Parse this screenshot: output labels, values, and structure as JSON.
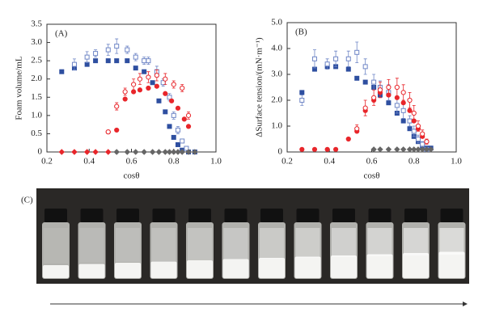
{
  "chart_data": [
    {
      "type": "scatter",
      "panel_label": "(A)",
      "x_label": "cosθ",
      "y_label": "Foam volume/mL",
      "xlim": [
        0.2,
        1.0
      ],
      "xticks": [
        0.2,
        0.4,
        0.6,
        0.8,
        {
          "value": 1.0,
          "label": "1.0"
        }
      ],
      "ylim": [
        0,
        3.5
      ],
      "yticks": [
        0,
        0.5,
        {
          "value": 1.0,
          "label": "1.0"
        },
        1.5,
        {
          "value": 2.0,
          "label": "2.0"
        },
        2.5,
        {
          "value": 3.0,
          "label": "3.0"
        },
        3.5
      ],
      "series": [
        {
          "color": "#2e4fa0",
          "marker": "square",
          "filled": true,
          "x": [
            0.27,
            0.33,
            0.39,
            0.43,
            0.49,
            0.53,
            0.58,
            0.62,
            0.66,
            0.7,
            0.73,
            0.76,
            0.78,
            0.8,
            0.82,
            0.84,
            0.87,
            0.9
          ],
          "values": [
            2.2,
            2.3,
            2.4,
            2.5,
            2.5,
            2.5,
            2.5,
            2.3,
            2.2,
            1.9,
            1.4,
            1.1,
            0.7,
            0.4,
            0.2,
            0.05,
            0,
            0
          ]
        },
        {
          "color": "#6f86c6",
          "marker": "square",
          "filled": false,
          "x": [
            0.33,
            0.39,
            0.43,
            0.49,
            0.53,
            0.58,
            0.62,
            0.66,
            0.68,
            0.72,
            0.75,
            0.78,
            0.8,
            0.82,
            0.84,
            0.86
          ],
          "values": [
            2.4,
            2.6,
            2.7,
            2.8,
            2.9,
            2.8,
            2.6,
            2.5,
            2.5,
            2.2,
            1.9,
            1.5,
            1.0,
            0.6,
            0.3,
            0.1
          ],
          "errors": [
            0.15,
            0.15,
            0.1,
            0.15,
            0.2,
            0.1,
            0.1,
            0.1,
            0.1,
            0.15,
            0.1,
            0.1,
            0.1,
            0.1,
            0.05,
            0.05
          ]
        },
        {
          "color": "#e8262b",
          "marker": "circle",
          "filled": true,
          "x": [
            0.49,
            0.53,
            0.57,
            0.61,
            0.64,
            0.68,
            0.72,
            0.76,
            0.79,
            0.82,
            0.85,
            0.87
          ],
          "values": [
            0.55,
            0.6,
            1.45,
            1.65,
            1.7,
            1.75,
            1.8,
            1.6,
            1.4,
            1.2,
            0.9,
            0.7
          ]
        },
        {
          "color": "#e8262b",
          "marker": "circle",
          "filled": false,
          "x": [
            0.49,
            0.53,
            0.57,
            0.61,
            0.64,
            0.68,
            0.72,
            0.76,
            0.8,
            0.84,
            0.87
          ],
          "values": [
            0.55,
            1.25,
            1.65,
            1.85,
            2.0,
            2.05,
            2.1,
            2.0,
            1.85,
            1.75,
            1.0
          ],
          "errors": [
            0.05,
            0.1,
            0.1,
            0.15,
            0.15,
            0.15,
            0.15,
            0.15,
            0.1,
            0.1,
            0.1
          ]
        },
        {
          "color": "#e8262b",
          "marker": "diamond",
          "filled": true,
          "x": [
            0.27,
            0.33,
            0.39,
            0.43,
            0.49
          ],
          "values": [
            0,
            0,
            0,
            0,
            0
          ]
        },
        {
          "color": "#666666",
          "marker": "diamond",
          "filled": true,
          "x": [
            0.53,
            0.58,
            0.62,
            0.66,
            0.7,
            0.73,
            0.76,
            0.78,
            0.8,
            0.82,
            0.84,
            0.87,
            0.9
          ],
          "values": [
            0,
            0,
            0,
            0,
            0,
            0,
            0,
            0,
            0,
            0,
            0,
            0,
            0
          ]
        }
      ]
    },
    {
      "type": "scatter",
      "panel_label": "(B)",
      "x_label": "cosθ",
      "y_label": "ΔSurface tension/(mN·m⁻¹)",
      "xlim": [
        0.2,
        1.0
      ],
      "xticks": [
        0.2,
        0.4,
        0.6,
        0.8,
        {
          "value": 1.0,
          "label": "1.0"
        }
      ],
      "ylim": [
        0,
        5.0
      ],
      "yticks": [
        0,
        {
          "value": 1.0,
          "label": "1.0"
        },
        {
          "value": 2.0,
          "label": "2.0"
        },
        {
          "value": 3.0,
          "label": "3.0"
        },
        {
          "value": 4.0,
          "label": "4.0"
        },
        {
          "value": 5.0,
          "label": "5.0"
        }
      ],
      "series": [
        {
          "color": "#2e4fa0",
          "marker": "square",
          "filled": true,
          "x": [
            0.27,
            0.33,
            0.39,
            0.43,
            0.49,
            0.53,
            0.57,
            0.61,
            0.64,
            0.68,
            0.72,
            0.75,
            0.78,
            0.8,
            0.82,
            0.84,
            0.86,
            0.88
          ],
          "values": [
            2.3,
            3.2,
            3.3,
            3.3,
            3.2,
            2.85,
            2.7,
            2.5,
            2.2,
            1.9,
            1.5,
            1.2,
            0.9,
            0.6,
            0.4,
            0.2,
            0.15,
            0.15
          ]
        },
        {
          "color": "#6f86c6",
          "marker": "square",
          "filled": false,
          "x": [
            0.27,
            0.33,
            0.39,
            0.43,
            0.49,
            0.53,
            0.57,
            0.61,
            0.64,
            0.68,
            0.72,
            0.75,
            0.78,
            0.8,
            0.82,
            0.84,
            0.86
          ],
          "values": [
            2.0,
            3.6,
            3.4,
            3.6,
            3.6,
            3.85,
            3.3,
            2.7,
            2.5,
            2.3,
            1.8,
            1.6,
            1.2,
            0.8,
            0.5,
            0.3,
            0.1
          ],
          "errors": [
            0.2,
            0.35,
            0.2,
            0.3,
            0.3,
            0.4,
            0.3,
            0.3,
            0.25,
            0.3,
            0.3,
            0.3,
            0.2,
            0.2,
            0.15,
            0.1,
            0.05
          ]
        },
        {
          "color": "#e8262b",
          "marker": "circle",
          "filled": true,
          "x": [
            0.27,
            0.33,
            0.39,
            0.43,
            0.49,
            0.53,
            0.57,
            0.61,
            0.64,
            0.68,
            0.72,
            0.75,
            0.78,
            0.8,
            0.82,
            0.84,
            0.86
          ],
          "values": [
            0.1,
            0.1,
            0.1,
            0.1,
            0.5,
            0.8,
            1.6,
            2.0,
            2.3,
            2.2,
            2.1,
            1.9,
            1.6,
            1.2,
            0.9,
            0.6,
            0.4
          ]
        },
        {
          "color": "#e8262b",
          "marker": "circle",
          "filled": false,
          "x": [
            0.53,
            0.57,
            0.61,
            0.64,
            0.68,
            0.72,
            0.75,
            0.78,
            0.8,
            0.82,
            0.84,
            0.86
          ],
          "values": [
            0.9,
            1.7,
            2.1,
            2.4,
            2.5,
            2.5,
            2.3,
            2.0,
            1.5,
            1.0,
            0.7,
            0.4
          ],
          "errors": [
            0.15,
            0.3,
            0.3,
            0.3,
            0.3,
            0.35,
            0.3,
            0.3,
            0.3,
            0.2,
            0.15,
            0.1
          ]
        },
        {
          "color": "#666666",
          "marker": "diamond",
          "filled": true,
          "x": [
            0.61,
            0.64,
            0.68,
            0.72,
            0.75,
            0.78,
            0.8,
            0.82,
            0.84,
            0.86,
            0.88
          ],
          "values": [
            0.1,
            0.1,
            0.1,
            0.1,
            0.1,
            0.1,
            0.1,
            0.1,
            0.1,
            0.1,
            0.1
          ]
        }
      ]
    }
  ],
  "panel_c": {
    "label": "(C)"
  }
}
